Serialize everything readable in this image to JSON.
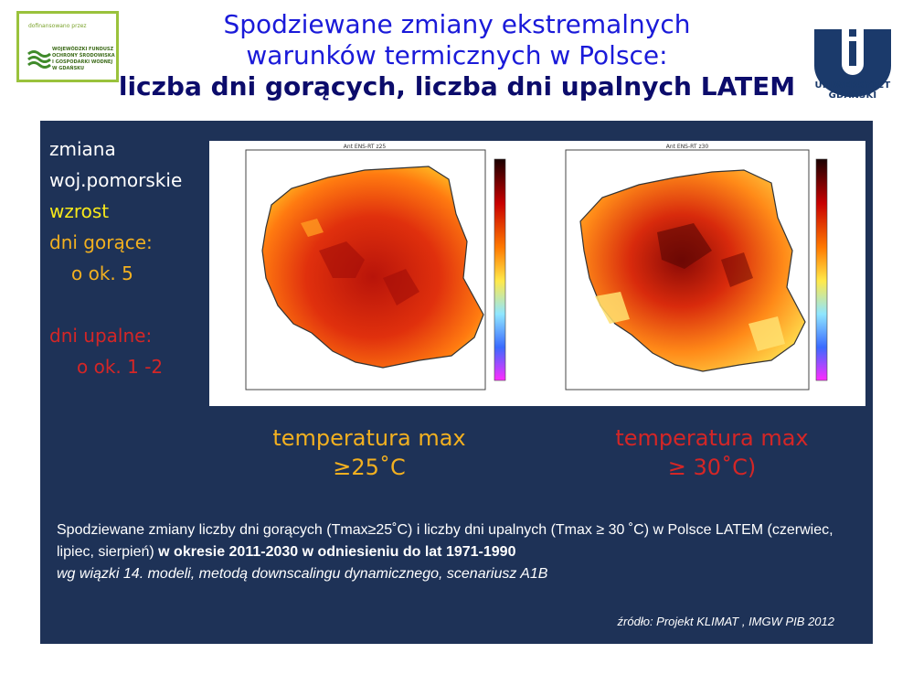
{
  "logo_left": {
    "funded_label": "dofinansowano przez",
    "fund_name": "Wojewódzki Fundusz Ochrony Środowiska i Gospodarki Wodnej w Gdańsku"
  },
  "title": {
    "line1": "Spodziewane zmiany ekstremalnych",
    "line2": "warunków termicznych w Polsce:",
    "line3": "liczba dni gorących, liczba dni upalnych LATEM"
  },
  "logo_right": {
    "name": "UNIWERSYTET GDAŃSKI"
  },
  "sidebar": {
    "l1": "zmiana",
    "l2": "woj.pomorskie",
    "l3": "wzrost",
    "l4": "dni gorące:",
    "l5": "o ok. 5",
    "l6": "dni upalne:",
    "l7": "o ok. 1 -2"
  },
  "maps": {
    "left_header": "Ant ENS-RT z25",
    "right_header": "Ant ENS-RT z30"
  },
  "captions": {
    "left_l1": "temperatura max",
    "left_l2": "≥25˚C",
    "right_l1": "temperatura  max",
    "right_l2": "≥ 30˚C)"
  },
  "description": {
    "part1": "Spodziewane zmiany liczby dni gorących (Tmax≥25˚C) i liczby dni upalnych (Tmax ≥ 30 ˚C) w Polsce LATEM (czerwiec, lipiec, sierpień) ",
    "part2_bold": "w okresie 2011-2030 w odniesieniu do lat 1971-1990",
    "part3_italic": "wg wiązki  14. modeli, metodą downscalingu  dynamicznego, scenariusz A1B"
  },
  "source": "źródło: Projekt KLIMAT , IMGW PIB 2012",
  "colors": {
    "panel": "#1e3257",
    "title": "#1a1ad9",
    "yellow": "#f7e81b",
    "orange": "#f2b020",
    "red": "#d42626"
  }
}
